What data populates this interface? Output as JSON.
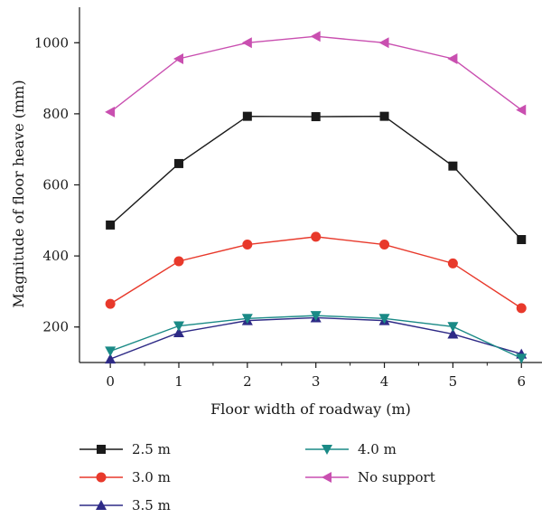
{
  "chart_data": {
    "type": "line",
    "title": "",
    "xlabel": "Floor width of roadway (m)",
    "ylabel": "Magnitude of floor heave (mm)",
    "x": [
      0,
      1,
      2,
      3,
      4,
      5,
      6
    ],
    "xlim": [
      -0.45,
      6.3
    ],
    "ylim": [
      100,
      1100
    ],
    "yticks": [
      200,
      400,
      600,
      800,
      1000
    ],
    "grid": false,
    "legend_position": "bottom",
    "series": [
      {
        "name": "2.5 m",
        "color": "#1a1a1a",
        "marker": "square",
        "values": [
          487,
          660,
          793,
          792,
          793,
          653,
          446
        ]
      },
      {
        "name": "3.0 m",
        "color": "#e8392b",
        "marker": "circle",
        "values": [
          265,
          385,
          432,
          454,
          432,
          379,
          253
        ]
      },
      {
        "name": "3.5 m",
        "color": "#2e2a86",
        "marker": "triangle-up",
        "values": [
          110,
          184,
          218,
          226,
          218,
          180,
          124
        ]
      },
      {
        "name": "4.0 m",
        "color": "#1a8a86",
        "marker": "triangle-down",
        "values": [
          132,
          203,
          224,
          232,
          224,
          201,
          112
        ]
      },
      {
        "name": "No support",
        "color": "#c94fb0",
        "marker": "triangle-left",
        "values": [
          805,
          955,
          1000,
          1018,
          1000,
          955,
          811
        ]
      }
    ]
  }
}
